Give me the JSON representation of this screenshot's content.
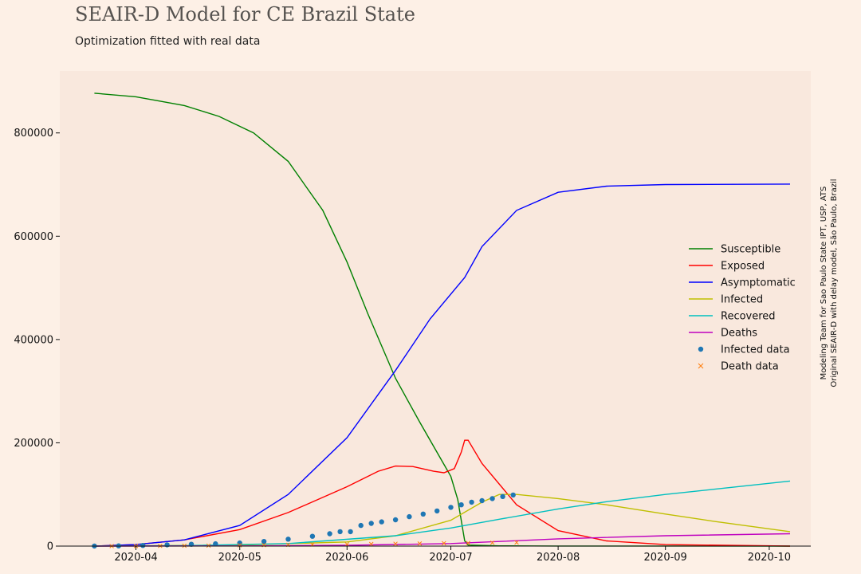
{
  "title": "SEAIR-D Model for CE Brazil State",
  "subtitle": "Optimization fitted with real data",
  "credits": {
    "line1": "Modeling Team for Sao Paulo State IPT, USP, ATS",
    "line2": "Original SEAIR-D with delay model, São Paulo, Brazil"
  },
  "colors": {
    "page_background": "#fdf0e6",
    "plot_background": "#f9e8dd",
    "susceptible": "#008000",
    "exposed": "#ff0000",
    "asymptomatic": "#0000ff",
    "infected": "#bfbf00",
    "recovered": "#00bfbf",
    "deaths": "#bf00bf",
    "infected_data": "#1f77b4",
    "death_data": "#ff7f0e"
  },
  "chart_data": {
    "type": "line",
    "xlim": [
      "2020-03-10",
      "2020-10-13"
    ],
    "ylim": [
      0,
      920000
    ],
    "grid": false,
    "legend_position": "right",
    "x_ticks": [
      "2020-04-01",
      "2020-05-01",
      "2020-06-01",
      "2020-07-01",
      "2020-08-01",
      "2020-09-01",
      "2020-10-01"
    ],
    "x_tick_labels": [
      "2020-04",
      "2020-05",
      "2020-06",
      "2020-07",
      "2020-08",
      "2020-09",
      "2020-10"
    ],
    "y_ticks": [
      0,
      200000,
      400000,
      600000,
      800000
    ],
    "y_tick_labels": [
      "0",
      "200000",
      "400000",
      "600000",
      "800000"
    ],
    "series": [
      {
        "name": "Susceptible",
        "color_key": "susceptible",
        "kind": "line",
        "points": [
          [
            "2020-03-20",
            877000
          ],
          [
            "2020-04-01",
            870000
          ],
          [
            "2020-04-15",
            853000
          ],
          [
            "2020-04-25",
            832000
          ],
          [
            "2020-05-05",
            800000
          ],
          [
            "2020-05-15",
            745000
          ],
          [
            "2020-05-25",
            650000
          ],
          [
            "2020-06-01",
            550000
          ],
          [
            "2020-06-07",
            450000
          ],
          [
            "2020-06-15",
            325000
          ],
          [
            "2020-06-22",
            240000
          ],
          [
            "2020-06-28",
            170000
          ],
          [
            "2020-07-01",
            135000
          ],
          [
            "2020-07-03",
            90000
          ],
          [
            "2020-07-05",
            10000
          ],
          [
            "2020-07-06",
            2000
          ],
          [
            "2020-07-15",
            500
          ],
          [
            "2020-08-01",
            100
          ],
          [
            "2020-10-07",
            0
          ]
        ]
      },
      {
        "name": "Exposed",
        "color_key": "exposed",
        "kind": "line",
        "points": [
          [
            "2020-03-20",
            0
          ],
          [
            "2020-04-01",
            3000
          ],
          [
            "2020-04-15",
            12000
          ],
          [
            "2020-05-01",
            32000
          ],
          [
            "2020-05-15",
            65000
          ],
          [
            "2020-06-01",
            115000
          ],
          [
            "2020-06-10",
            145000
          ],
          [
            "2020-06-15",
            155000
          ],
          [
            "2020-06-20",
            154000
          ],
          [
            "2020-06-26",
            145000
          ],
          [
            "2020-06-29",
            142000
          ],
          [
            "2020-07-02",
            150000
          ],
          [
            "2020-07-04",
            182000
          ],
          [
            "2020-07-05",
            205000
          ],
          [
            "2020-07-06",
            205000
          ],
          [
            "2020-07-10",
            160000
          ],
          [
            "2020-07-20",
            80000
          ],
          [
            "2020-08-01",
            30000
          ],
          [
            "2020-08-15",
            10000
          ],
          [
            "2020-09-01",
            3000
          ],
          [
            "2020-10-07",
            0
          ]
        ]
      },
      {
        "name": "Asymptomatic",
        "color_key": "asymptomatic",
        "kind": "line",
        "points": [
          [
            "2020-03-20",
            0
          ],
          [
            "2020-04-01",
            3000
          ],
          [
            "2020-04-15",
            12000
          ],
          [
            "2020-05-01",
            40000
          ],
          [
            "2020-05-15",
            100000
          ],
          [
            "2020-06-01",
            210000
          ],
          [
            "2020-06-15",
            340000
          ],
          [
            "2020-06-25",
            440000
          ],
          [
            "2020-07-05",
            520000
          ],
          [
            "2020-07-10",
            580000
          ],
          [
            "2020-07-20",
            650000
          ],
          [
            "2020-08-01",
            685000
          ],
          [
            "2020-08-15",
            697000
          ],
          [
            "2020-09-01",
            700000
          ],
          [
            "2020-10-07",
            701000
          ]
        ]
      },
      {
        "name": "Infected",
        "color_key": "infected",
        "kind": "line",
        "points": [
          [
            "2020-03-20",
            0
          ],
          [
            "2020-04-01",
            500
          ],
          [
            "2020-05-01",
            2000
          ],
          [
            "2020-06-01",
            8000
          ],
          [
            "2020-06-15",
            20000
          ],
          [
            "2020-07-01",
            50000
          ],
          [
            "2020-07-10",
            85000
          ],
          [
            "2020-07-15",
            100000
          ],
          [
            "2020-07-20",
            100000
          ],
          [
            "2020-08-01",
            92000
          ],
          [
            "2020-08-15",
            80000
          ],
          [
            "2020-09-01",
            62000
          ],
          [
            "2020-09-15",
            48000
          ],
          [
            "2020-10-07",
            28000
          ]
        ]
      },
      {
        "name": "Recovered",
        "color_key": "recovered",
        "kind": "line",
        "points": [
          [
            "2020-03-20",
            0
          ],
          [
            "2020-04-15",
            1000
          ],
          [
            "2020-05-15",
            5000
          ],
          [
            "2020-06-15",
            20000
          ],
          [
            "2020-07-01",
            35000
          ],
          [
            "2020-07-15",
            52000
          ],
          [
            "2020-08-01",
            72000
          ],
          [
            "2020-08-15",
            86000
          ],
          [
            "2020-09-01",
            100000
          ],
          [
            "2020-09-15",
            110000
          ],
          [
            "2020-10-07",
            126000
          ]
        ]
      },
      {
        "name": "Deaths",
        "color_key": "deaths",
        "kind": "line",
        "points": [
          [
            "2020-03-20",
            0
          ],
          [
            "2020-05-01",
            300
          ],
          [
            "2020-06-01",
            1500
          ],
          [
            "2020-07-01",
            5000
          ],
          [
            "2020-07-15",
            9000
          ],
          [
            "2020-08-01",
            14000
          ],
          [
            "2020-09-01",
            20000
          ],
          [
            "2020-10-07",
            24000
          ]
        ]
      },
      {
        "name": "Infected data",
        "color_key": "infected_data",
        "kind": "points",
        "marker": "circle",
        "points": [
          [
            "2020-03-20",
            100
          ],
          [
            "2020-03-27",
            400
          ],
          [
            "2020-04-03",
            1200
          ],
          [
            "2020-04-10",
            2500
          ],
          [
            "2020-04-17",
            3500
          ],
          [
            "2020-04-24",
            4500
          ],
          [
            "2020-05-01",
            6000
          ],
          [
            "2020-05-08",
            9000
          ],
          [
            "2020-05-15",
            13500
          ],
          [
            "2020-05-22",
            19000
          ],
          [
            "2020-05-27",
            24000
          ],
          [
            "2020-05-30",
            28000
          ],
          [
            "2020-06-02",
            28000
          ],
          [
            "2020-06-05",
            40000
          ],
          [
            "2020-06-08",
            44000
          ],
          [
            "2020-06-11",
            47000
          ],
          [
            "2020-06-15",
            51000
          ],
          [
            "2020-06-19",
            57000
          ],
          [
            "2020-06-23",
            62000
          ],
          [
            "2020-06-27",
            68000
          ],
          [
            "2020-07-01",
            75000
          ],
          [
            "2020-07-04",
            80000
          ],
          [
            "2020-07-07",
            85000
          ],
          [
            "2020-07-10",
            88000
          ],
          [
            "2020-07-13",
            92000
          ],
          [
            "2020-07-16",
            96000
          ],
          [
            "2020-07-19",
            99000
          ]
        ]
      },
      {
        "name": "Death data",
        "color_key": "death_data",
        "kind": "points",
        "marker": "x",
        "points": [
          [
            "2020-03-25",
            0
          ],
          [
            "2020-04-01",
            200
          ],
          [
            "2020-04-08",
            400
          ],
          [
            "2020-04-15",
            700
          ],
          [
            "2020-04-22",
            1000
          ],
          [
            "2020-05-01",
            1500
          ],
          [
            "2020-05-08",
            2000
          ],
          [
            "2020-05-15",
            2500
          ],
          [
            "2020-05-22",
            3000
          ],
          [
            "2020-06-01",
            3500
          ],
          [
            "2020-06-08",
            4000
          ],
          [
            "2020-06-15",
            4500
          ],
          [
            "2020-06-22",
            5000
          ],
          [
            "2020-06-29",
            5500
          ],
          [
            "2020-07-06",
            6000
          ],
          [
            "2020-07-13",
            6500
          ],
          [
            "2020-07-20",
            7000
          ]
        ]
      }
    ]
  }
}
